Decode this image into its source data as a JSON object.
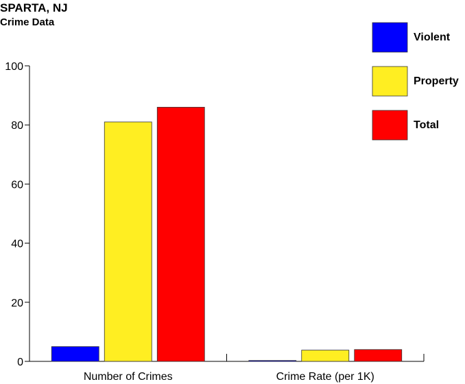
{
  "chart_data": {
    "type": "bar",
    "title": "SPARTA, NJ",
    "subtitle": "Crime Data",
    "categories": [
      "Number of Crimes",
      "Crime Rate (per 1K)"
    ],
    "series": [
      {
        "name": "Violent",
        "color": "#0000ff",
        "values": [
          5,
          0.3
        ]
      },
      {
        "name": "Property",
        "color": "#ffee22",
        "values": [
          81,
          3.8
        ]
      },
      {
        "name": "Total",
        "color": "#ff0000",
        "values": [
          86,
          4
        ]
      }
    ],
    "ylim": [
      0,
      100
    ],
    "yticks": [
      "0",
      "20",
      "40",
      "60",
      "80",
      "100"
    ],
    "ytick_values": [
      0,
      20,
      40,
      60,
      80,
      100
    ],
    "xlabel": "",
    "ylabel": "",
    "grid": false,
    "legend_position": "top-right"
  }
}
